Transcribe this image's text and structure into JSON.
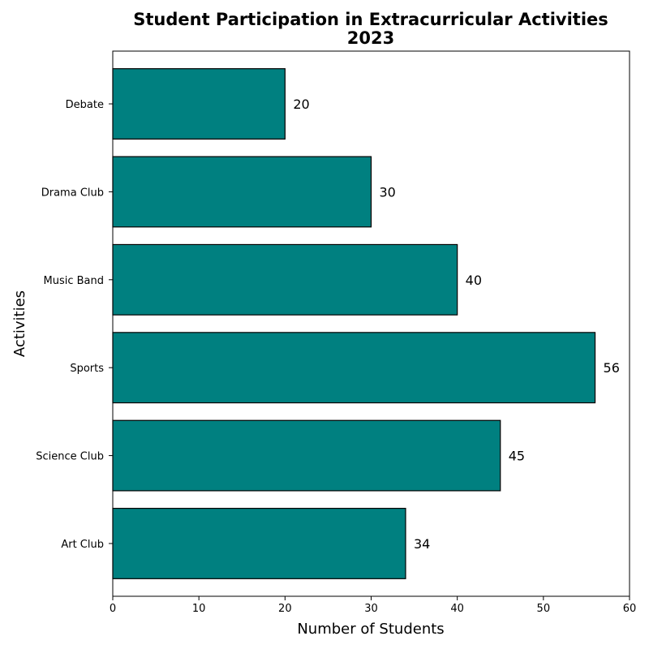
{
  "chart_data": {
    "type": "bar",
    "orientation": "horizontal",
    "title_lines": [
      "Student Participation in Extracurricular Activities",
      "2023"
    ],
    "xlabel": "Number of Students",
    "ylabel": "Activities",
    "categories": [
      "Art Club",
      "Science Club",
      "Sports",
      "Music Band",
      "Drama Club",
      "Debate"
    ],
    "values": [
      34,
      45,
      56,
      40,
      30,
      20
    ],
    "xlim": [
      0,
      60
    ],
    "xticks": [
      0,
      10,
      20,
      30,
      40,
      50,
      60
    ],
    "grid": false,
    "bar_color": "#008080",
    "bar_edge_color": "#000000",
    "data_labels": true
  }
}
